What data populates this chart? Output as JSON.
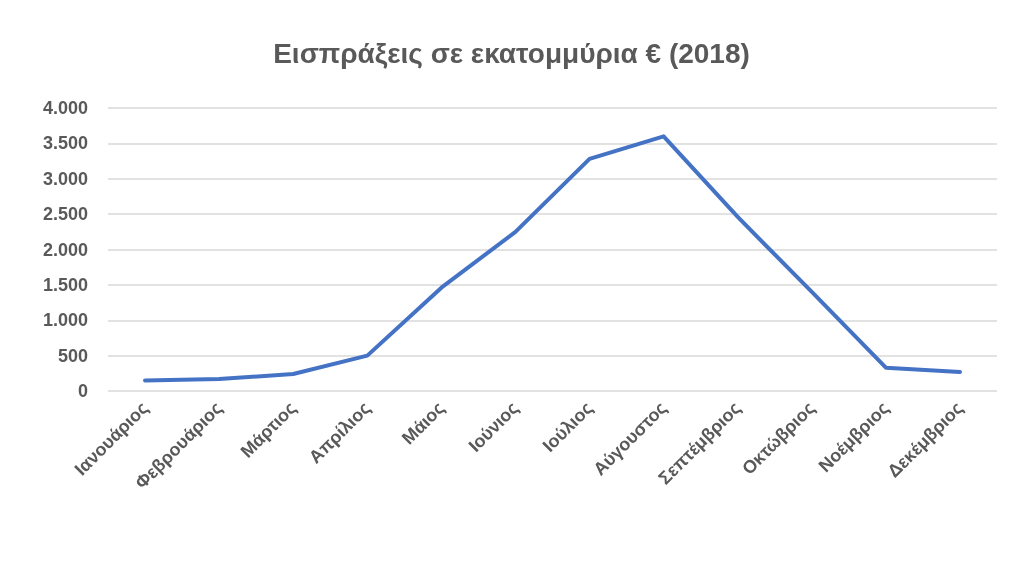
{
  "chart_data": {
    "type": "line",
    "title": "Εισπράξεις σε εκατομμύρια € (2018)",
    "categories": [
      "Ιανουάριος",
      "Φεβρουάριος",
      "Μάρτιος",
      "Απρίλιος",
      "Μάιος",
      "Ιούνιος",
      "Ιούλιος",
      "Αύγουστος",
      "Σεπτέμβριος",
      "Οκτώβριος",
      "Νοέμβριος",
      "Δεκέμβριος"
    ],
    "series": [
      {
        "color": "#4472c4",
        "values": [
          150,
          170,
          240,
          500,
          1460,
          2250,
          3280,
          3600,
          2460,
          1400,
          330,
          270
        ]
      }
    ],
    "ylim": [
      0,
      4000
    ],
    "yticks": [
      {
        "value": 0,
        "label": "0"
      },
      {
        "value": 500,
        "label": "500"
      },
      {
        "value": 1000,
        "label": "1.000"
      },
      {
        "value": 1500,
        "label": "1.500"
      },
      {
        "value": 2000,
        "label": "2.000"
      },
      {
        "value": 2500,
        "label": "2.500"
      },
      {
        "value": 3000,
        "label": "3.000"
      },
      {
        "value": 3500,
        "label": "3.500"
      },
      {
        "value": 4000,
        "label": "4.000"
      }
    ],
    "grid": "y",
    "marker": "none",
    "line_style": "solid"
  }
}
